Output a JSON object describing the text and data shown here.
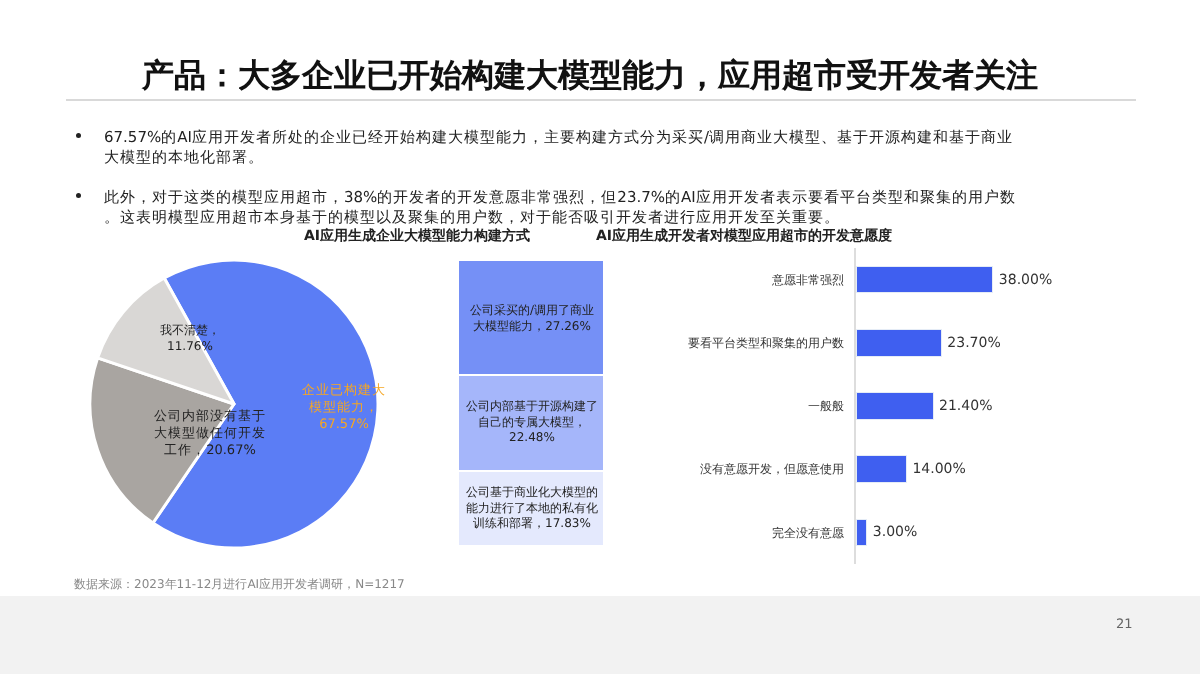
{
  "chart_data": [
    {
      "type": "other",
      "title": "产品：大多企业已开始构建大模型能力，应用超市受开发者关注",
      "annotations": [
        "67.57%的AI应用开发者所处的企业已经开始构建大模型能力，主要构建方式分为采买/调用商业大模型、基于开源构建和基于商业大模型的本地化部署。",
        "此外，对于这类的模型应用超市，38%的开发者的开发意愿非常强烈，但23.7%的AI应用开发者表示要看平台类型和聚集的用户数。这表明模型应用超市本身基于的模型以及聚集的用户数，对于能否吸引开发者进行应用开发至关重要。",
        "21"
      ]
    },
    {
      "type": "pie",
      "title": "AI应用生成企业大模型能力构建方式",
      "categories": [
        "企业已构建大模型能力，67.57%",
        "公司内部没有基于大模型做任何开发工作，20.67%",
        "我不清楚，11.76%"
      ],
      "values": [
        67.57,
        20.67,
        11.76
      ],
      "colors": [
        "#5b7df5",
        "#a9a5a1",
        "#d9d7d5"
      ],
      "annotations": [
        "数据来源：2023年11-12月进行AI应用开发者调研，N=1217"
      ]
    },
    {
      "type": "bar",
      "stacked": true,
      "categories": [
        null
      ],
      "ylim": [
        0,
        67.57
      ],
      "series": [
        {
          "color": "#e4e9fd",
          "values": [
            17.83
          ],
          "value_labels": [
            "公司基于商业化大模型的能力进行了本地的私有化训练和部署，17.83%"
          ]
        },
        {
          "color": "#a5b6fa",
          "values": [
            22.48
          ],
          "value_labels": [
            "公司内部基于开源构建了自己的专属大模型，22.48%"
          ]
        },
        {
          "color": "#7590f6",
          "values": [
            27.26
          ],
          "value_labels": [
            "公司采买的/调用了商业大模型能力，27.26%"
          ]
        }
      ]
    },
    {
      "type": "bar",
      "orientation": "horizontal",
      "title": "AI应用生成开发者对模型应用超市的开发意愿度",
      "categories": [
        "意愿非常强烈",
        "要看平台类型和聚集的用户数",
        "一般般",
        "没有意愿开发，但愿意使用",
        "完全没有意愿"
      ],
      "values": [
        38.0,
        23.7,
        21.4,
        14.0,
        3.0
      ],
      "color": "#3f5ff0",
      "value_labels": [
        "38.00%",
        "23.70%",
        "21.40%",
        "14.00%",
        "3.00%"
      ]
    }
  ]
}
